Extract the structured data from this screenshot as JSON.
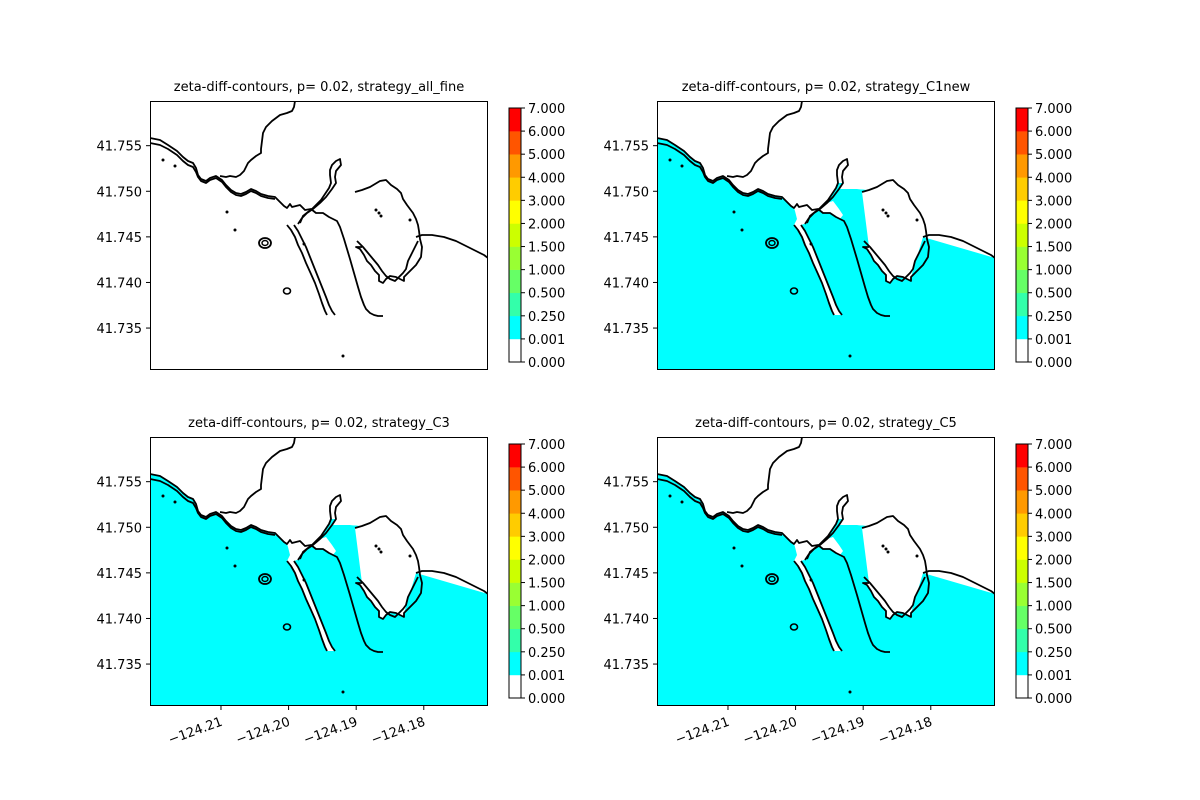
{
  "chart_data": [
    {
      "type": "heatmap",
      "title": "zeta-diff-contours, p= 0.02, strategy_all_fine",
      "xlim": [
        -124.2205,
        -124.1705
      ],
      "ylim": [
        41.7304,
        41.7599
      ],
      "y_ticks": [
        41.735,
        41.74,
        41.745,
        41.75,
        41.755
      ],
      "y_tick_labels": [
        "41.735",
        "41.740",
        "41.745",
        "41.750",
        "41.755"
      ],
      "x_ticks": [],
      "x_tick_labels": [],
      "water_fill_level": "none",
      "colorbar": {
        "levels": [
          "0.000",
          "0.001",
          "0.250",
          "0.500",
          "1.000",
          "1.500",
          "2.000",
          "3.000",
          "4.000",
          "5.000",
          "6.000",
          "7.000"
        ],
        "colors": [
          "#ffffff",
          "#00ffff",
          "#33ffaa",
          "#66ff66",
          "#99ff33",
          "#ccff00",
          "#ffff00",
          "#ffcc00",
          "#ff9900",
          "#ff5500",
          "#ff0000"
        ]
      }
    },
    {
      "type": "heatmap",
      "title": "zeta-diff-contours, p= 0.02, strategy_C1new",
      "xlim": [
        -124.2205,
        -124.1705
      ],
      "ylim": [
        41.7304,
        41.7599
      ],
      "y_ticks": [
        41.735,
        41.74,
        41.745,
        41.75,
        41.755
      ],
      "y_tick_labels": [
        "41.735",
        "41.740",
        "41.745",
        "41.750",
        "41.755"
      ],
      "x_ticks": [],
      "x_tick_labels": [],
      "water_fill_level": "0.001-0.250",
      "colorbar": {
        "levels": [
          "0.000",
          "0.001",
          "0.250",
          "0.500",
          "1.000",
          "1.500",
          "2.000",
          "3.000",
          "4.000",
          "5.000",
          "6.000",
          "7.000"
        ],
        "colors": [
          "#ffffff",
          "#00ffff",
          "#33ffaa",
          "#66ff66",
          "#99ff33",
          "#ccff00",
          "#ffff00",
          "#ffcc00",
          "#ff9900",
          "#ff5500",
          "#ff0000"
        ]
      }
    },
    {
      "type": "heatmap",
      "title": "zeta-diff-contours, p= 0.02, strategy_C3",
      "xlim": [
        -124.2205,
        -124.1705
      ],
      "ylim": [
        41.7304,
        41.7599
      ],
      "y_ticks": [
        41.735,
        41.74,
        41.745,
        41.75,
        41.755
      ],
      "y_tick_labels": [
        "41.735",
        "41.740",
        "41.745",
        "41.750",
        "41.755"
      ],
      "x_ticks": [
        -124.21,
        -124.2,
        -124.19,
        -124.18
      ],
      "x_tick_labels": [
        "−124.21",
        "−124.20",
        "−124.19",
        "−124.18"
      ],
      "water_fill_level": "0.001-0.250",
      "colorbar": {
        "levels": [
          "0.000",
          "0.001",
          "0.250",
          "0.500",
          "1.000",
          "1.500",
          "2.000",
          "3.000",
          "4.000",
          "5.000",
          "6.000",
          "7.000"
        ],
        "colors": [
          "#ffffff",
          "#00ffff",
          "#33ffaa",
          "#66ff66",
          "#99ff33",
          "#ccff00",
          "#ffff00",
          "#ffcc00",
          "#ff9900",
          "#ff5500",
          "#ff0000"
        ]
      }
    },
    {
      "type": "heatmap",
      "title": "zeta-diff-contours, p= 0.02, strategy_C5",
      "xlim": [
        -124.2205,
        -124.1705
      ],
      "ylim": [
        41.7304,
        41.7599
      ],
      "y_ticks": [
        41.735,
        41.74,
        41.745,
        41.75,
        41.755
      ],
      "y_tick_labels": [
        "41.735",
        "41.740",
        "41.745",
        "41.750",
        "41.755"
      ],
      "x_ticks": [
        -124.21,
        -124.2,
        -124.19,
        -124.18
      ],
      "x_tick_labels": [
        "−124.21",
        "−124.20",
        "−124.19",
        "−124.18"
      ],
      "water_fill_level": "0.001-0.250",
      "colorbar": {
        "levels": [
          "0.000",
          "0.001",
          "0.250",
          "0.500",
          "1.000",
          "1.500",
          "2.000",
          "3.000",
          "4.000",
          "5.000",
          "6.000",
          "7.000"
        ],
        "colors": [
          "#ffffff",
          "#00ffff",
          "#33ffaa",
          "#66ff66",
          "#99ff33",
          "#ccff00",
          "#ffff00",
          "#ffcc00",
          "#ff9900",
          "#ff5500",
          "#ff0000"
        ]
      }
    }
  ]
}
